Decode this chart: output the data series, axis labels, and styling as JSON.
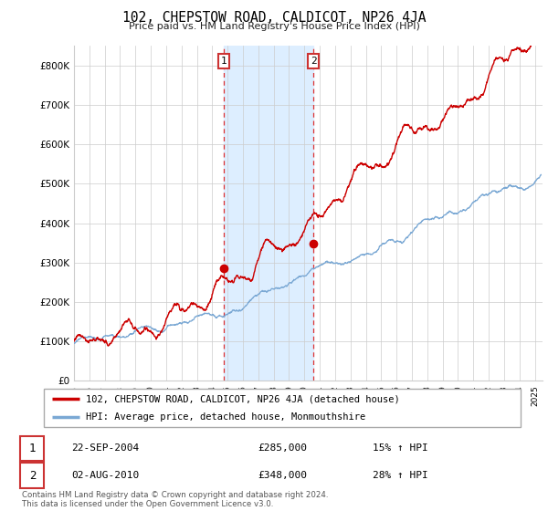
{
  "title": "102, CHEPSTOW ROAD, CALDICOT, NP26 4JA",
  "subtitle": "Price paid vs. HM Land Registry's House Price Index (HPI)",
  "ylabel_ticks": [
    "£0",
    "£100K",
    "£200K",
    "£300K",
    "£400K",
    "£500K",
    "£600K",
    "£700K",
    "£800K"
  ],
  "ytick_values": [
    0,
    100000,
    200000,
    300000,
    400000,
    500000,
    600000,
    700000,
    800000
  ],
  "ylim": [
    0,
    850000
  ],
  "xlim_start": 1995.0,
  "xlim_end": 2025.5,
  "sale1_x": 2004.73,
  "sale1_y": 285000,
  "sale1_label": "1",
  "sale1_date": "22-SEP-2004",
  "sale1_price": "£285,000",
  "sale1_hpi": "15% ↑ HPI",
  "sale2_x": 2010.58,
  "sale2_y": 348000,
  "sale2_label": "2",
  "sale2_date": "02-AUG-2010",
  "sale2_price": "£348,000",
  "sale2_hpi": "28% ↑ HPI",
  "line1_color": "#cc0000",
  "line2_color": "#7aa8d4",
  "shade_color": "#ddeeff",
  "grid_color": "#cccccc",
  "legend_label1": "102, CHEPSTOW ROAD, CALDICOT, NP26 4JA (detached house)",
  "legend_label2": "HPI: Average price, detached house, Monmouthshire",
  "footnote": "Contains HM Land Registry data © Crown copyright and database right 2024.\nThis data is licensed under the Open Government Licence v3.0."
}
